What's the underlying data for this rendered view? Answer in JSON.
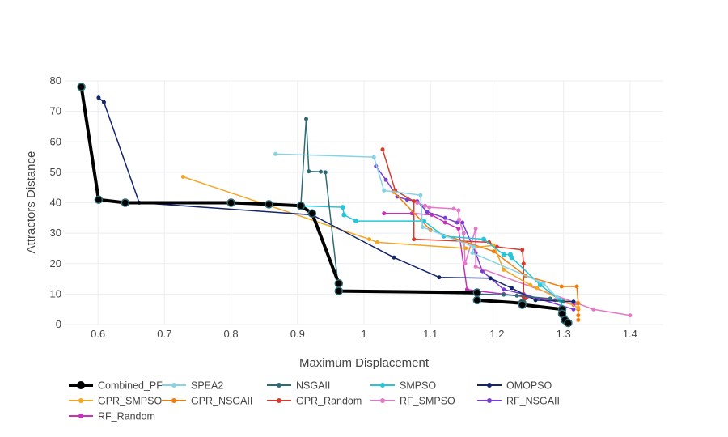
{
  "chart_data": {
    "type": "line",
    "xlabel": "Maximum Displacement",
    "ylabel": "Attractors Distance",
    "xlim": [
      0.55,
      1.45
    ],
    "ylim": [
      0,
      80
    ],
    "x_ticks": [
      0.6,
      0.7,
      0.8,
      0.9,
      1,
      1.1,
      1.2,
      1.3,
      1.4
    ],
    "y_ticks": [
      0,
      10,
      20,
      30,
      40,
      50,
      60,
      70,
      80
    ],
    "grid": true,
    "legend_position": "bottom-left",
    "series": [
      {
        "name": "Combined_PF",
        "color": "#000000",
        "line_width": 4,
        "marker_size": 9,
        "x": [
          0.575,
          0.601,
          0.641,
          0.8,
          0.857,
          0.905,
          0.922,
          0.962,
          0.962,
          1.17,
          1.17,
          1.238,
          1.238,
          1.298,
          1.298,
          1.302,
          1.307
        ],
        "y": [
          78.0,
          41.0,
          40.0,
          40.0,
          39.5,
          39.0,
          36.5,
          13.5,
          11.0,
          10.5,
          8.0,
          7.0,
          6.5,
          5.0,
          3.5,
          1.5,
          0.5
        ]
      },
      {
        "name": "SPEA2",
        "color": "#87d3e6",
        "line_width": 1.5,
        "marker_size": 5,
        "x": [
          0.867,
          1.015,
          1.03,
          1.085,
          1.088,
          1.165,
          1.163,
          1.27,
          1.29
        ],
        "y": [
          56.0,
          55.0,
          44.0,
          42.5,
          32.0,
          25.5,
          23.5,
          13.5,
          9.0
        ]
      },
      {
        "name": "NSGAII",
        "color": "#2f6b75",
        "line_width": 1.5,
        "marker_size": 5,
        "x": [
          0.575,
          0.601,
          0.641,
          0.8,
          0.857,
          0.905,
          0.913,
          0.917,
          0.935,
          0.942,
          0.962,
          1.17,
          1.21,
          1.23,
          1.28,
          1.3
        ],
        "y": [
          78.0,
          41.0,
          40.0,
          40.0,
          39.5,
          39.0,
          67.5,
          50.3,
          50.2,
          50.0,
          11.0,
          10.0,
          9.8,
          9.5,
          8.5,
          7.5
        ]
      },
      {
        "name": "SMPSO",
        "color": "#26c6da",
        "line_width": 1.5,
        "marker_size": 6,
        "x": [
          0.575,
          0.601,
          0.641,
          0.8,
          0.857,
          0.905,
          0.968,
          0.97,
          0.988,
          1.09,
          1.12,
          1.18,
          1.21,
          1.22,
          1.222,
          1.265,
          1.295,
          1.3,
          1.307
        ],
        "y": [
          78.0,
          41.0,
          40.0,
          40.0,
          39.5,
          39.0,
          38.5,
          36.0,
          34.0,
          34.0,
          29.0,
          28.0,
          23.0,
          23.0,
          22.0,
          13.0,
          8.0,
          5.0,
          1.0
        ]
      },
      {
        "name": "OMOPSO",
        "color": "#14256e",
        "line_width": 1.5,
        "marker_size": 5,
        "x": [
          0.601,
          0.609,
          0.662,
          0.922,
          1.045,
          1.113,
          1.19,
          1.222,
          1.258,
          1.315
        ],
        "y": [
          74.5,
          73.0,
          40.0,
          36.0,
          22.0,
          15.5,
          15.2,
          12.0,
          8.0,
          7.5
        ]
      },
      {
        "name": "GPR_SMPSO",
        "color": "#f5a623",
        "line_width": 1.5,
        "marker_size": 5,
        "x": [
          0.728,
          1.008,
          1.02,
          1.153,
          1.195,
          1.21,
          1.25,
          1.26,
          1.322
        ],
        "y": [
          48.5,
          28.0,
          27.0,
          25.0,
          26.0,
          18.0,
          13.0,
          12.0,
          5.5
        ]
      },
      {
        "name": "GPR_NSGAII",
        "color": "#ef7d0f",
        "line_width": 1.5,
        "marker_size": 5,
        "x": [
          1.045,
          1.1,
          1.195,
          1.243,
          1.297,
          1.32,
          1.322,
          1.322,
          1.322,
          1.322
        ],
        "y": [
          43.5,
          31.0,
          24.0,
          16.0,
          12.5,
          12.5,
          7.0,
          5.0,
          3.0,
          1.5
        ]
      },
      {
        "name": "GPR_Random",
        "color": "#d63b2e",
        "line_width": 1.5,
        "marker_size": 5,
        "x": [
          1.028,
          1.047,
          1.075,
          1.075,
          1.188,
          1.2,
          1.238,
          1.24,
          1.24,
          1.242
        ],
        "y": [
          57.5,
          44.0,
          40.5,
          28.0,
          27.0,
          25.5,
          24.5,
          20.0,
          9.0,
          8.5
        ]
      },
      {
        "name": "RF_SMPSO",
        "color": "#e07ac8",
        "line_width": 1.5,
        "marker_size": 5,
        "x": [
          1.08,
          1.092,
          1.098,
          1.135,
          1.142,
          1.143,
          1.15,
          1.152,
          1.168,
          1.168,
          1.32,
          1.345,
          1.4
        ],
        "y": [
          40.0,
          39.0,
          38.5,
          38.0,
          37.5,
          34.5,
          30.0,
          20.0,
          31.5,
          19.0,
          7.0,
          5.0,
          3.0
        ]
      },
      {
        "name": "RF_NSGAII",
        "color": "#7b3fcf",
        "line_width": 1.5,
        "marker_size": 5,
        "x": [
          1.018,
          1.033,
          1.05,
          1.065,
          1.08,
          1.095,
          1.122,
          1.14,
          1.148,
          1.168,
          1.178,
          1.21,
          1.24,
          1.315
        ],
        "y": [
          52.0,
          47.5,
          42.0,
          41.0,
          40.5,
          37.0,
          35.0,
          33.5,
          33.5,
          23.5,
          17.5,
          11.5,
          10.0,
          5.0
        ]
      },
      {
        "name": "RF_Random",
        "color": "#c730b8",
        "line_width": 1.5,
        "marker_size": 5,
        "x": [
          1.03,
          1.072,
          1.102,
          1.122,
          1.142,
          1.155,
          1.172,
          1.21,
          1.245,
          1.287,
          1.315
        ],
        "y": [
          36.5,
          36.5,
          36.0,
          33.5,
          31.5,
          11.5,
          11.0,
          10.0,
          9.0,
          8.0,
          6.5
        ]
      }
    ]
  }
}
